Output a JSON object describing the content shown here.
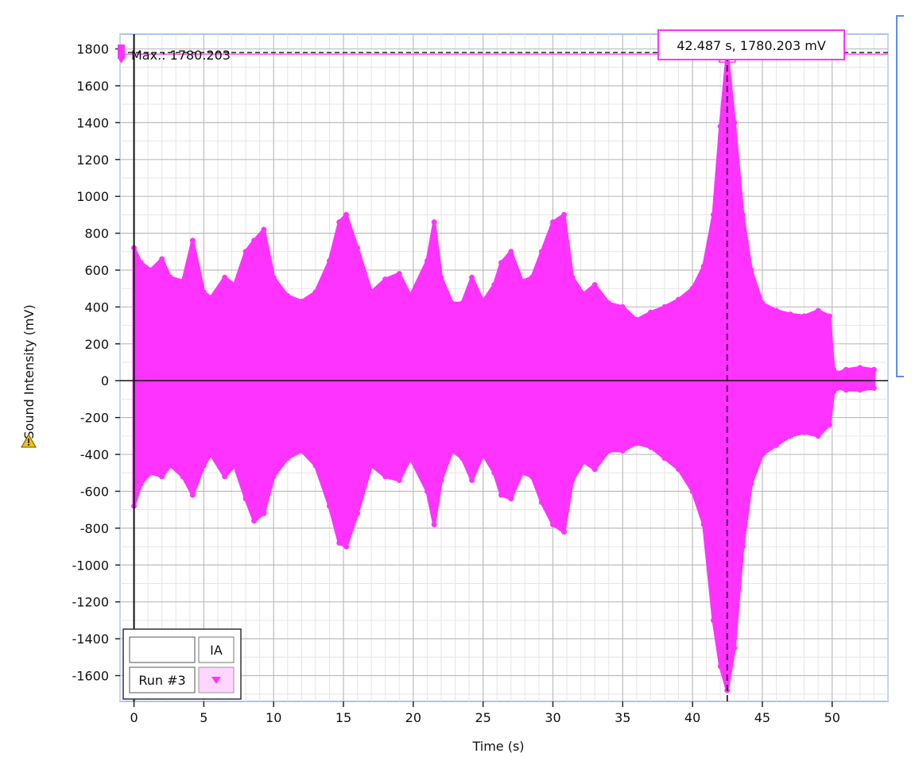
{
  "chart_data": {
    "type": "scatter",
    "title": "",
    "xlabel": "Time (s)",
    "ylabel": "Sound Intensity (mV)",
    "xlim": [
      -1,
      54
    ],
    "ylim": [
      -1740,
      1880
    ],
    "x_ticks": [
      0,
      5,
      10,
      15,
      20,
      25,
      30,
      35,
      40,
      45,
      50
    ],
    "y_ticks": [
      -1600,
      -1400,
      -1200,
      -1000,
      -800,
      -600,
      -400,
      -200,
      0,
      200,
      400,
      600,
      800,
      1000,
      1200,
      1400,
      1600,
      1800
    ],
    "grid": true,
    "series": [
      {
        "name": "Run #3",
        "color": "#ff33ff",
        "envelope_x": [
          0.0,
          0.5,
          1.2,
          2.0,
          2.6,
          3.5,
          4.2,
          5.0,
          5.5,
          6.5,
          7.2,
          8.0,
          8.6,
          9.3,
          10.0,
          11.0,
          12.0,
          13.0,
          14.0,
          14.7,
          15.2,
          16.0,
          17.0,
          18.0,
          19.0,
          19.8,
          21.0,
          21.5,
          22.0,
          22.8,
          23.5,
          24.2,
          25.0,
          25.8,
          26.3,
          27.0,
          27.8,
          28.5,
          29.2,
          30.0,
          30.8,
          31.4,
          32.2,
          33.0,
          34.0,
          35.0,
          36.0,
          37.0,
          38.0,
          39.0,
          40.0,
          40.8,
          41.5,
          42.0,
          42.487,
          43.0,
          43.6,
          44.2,
          45.0,
          46.0,
          47.0,
          48.0,
          49.0,
          49.8,
          50.1,
          50.4,
          51.0,
          52.0,
          53.0
        ],
        "envelope_max": [
          720,
          640,
          600,
          660,
          560,
          540,
          760,
          480,
          450,
          560,
          520,
          700,
          760,
          820,
          560,
          460,
          430,
          480,
          650,
          860,
          900,
          720,
          480,
          550,
          580,
          460,
          650,
          860,
          560,
          420,
          420,
          560,
          430,
          520,
          640,
          700,
          540,
          560,
          700,
          860,
          900,
          560,
          470,
          520,
          420,
          400,
          330,
          370,
          400,
          440,
          500,
          620,
          900,
          1380,
          1780,
          1400,
          900,
          600,
          420,
          380,
          360,
          350,
          380,
          350,
          60,
          40,
          60,
          70,
          60
        ],
        "envelope_min": [
          -680,
          -560,
          -500,
          -520,
          -460,
          -520,
          -620,
          -460,
          -400,
          -520,
          -460,
          -640,
          -760,
          -720,
          -520,
          -420,
          -380,
          -460,
          -680,
          -880,
          -900,
          -720,
          -460,
          -520,
          -540,
          -420,
          -600,
          -780,
          -540,
          -380,
          -420,
          -540,
          -400,
          -500,
          -620,
          -640,
          -500,
          -520,
          -660,
          -780,
          -820,
          -540,
          -440,
          -480,
          -380,
          -380,
          -340,
          -360,
          -420,
          -480,
          -600,
          -780,
          -1300,
          -1550,
          -1680,
          -1450,
          -900,
          -560,
          -400,
          -350,
          -300,
          -280,
          -300,
          -240,
          -60,
          -40,
          -50,
          -50,
          -40
        ]
      }
    ],
    "max_marker": {
      "label": "Max.: 1780.203",
      "value": 1780.203
    },
    "cursor": {
      "x": 42.487,
      "y": 1780.203,
      "label": "42.487 s, 1780.203 mV"
    },
    "legend": {
      "placement": "bottom-left",
      "header_right": "IA",
      "run_label": "Run #3"
    }
  }
}
